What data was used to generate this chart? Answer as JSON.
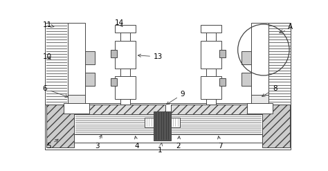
{
  "fig_width": 4.74,
  "fig_height": 2.47,
  "dpi": 100,
  "bg_color": "#ffffff",
  "lc": "#444444",
  "dg": "#777777",
  "mg": "#aaaaaa",
  "hatch_fc": "#cccccc"
}
